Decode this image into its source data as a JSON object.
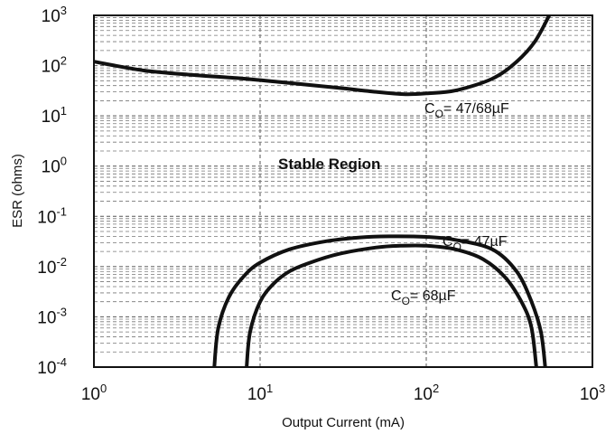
{
  "chart_data": {
    "type": "line",
    "title": "",
    "xlabel": "Output Current (mA)",
    "ylabel": "ESR (ohms)",
    "xscale": "log",
    "yscale": "log",
    "xlim": [
      1,
      1000
    ],
    "ylim": [
      0.0001,
      1000
    ],
    "grid": true,
    "x_ticks": [
      {
        "base": "10",
        "exp": "0",
        "value": 1
      },
      {
        "base": "10",
        "exp": "1",
        "value": 10
      },
      {
        "base": "10",
        "exp": "2",
        "value": 100
      },
      {
        "base": "10",
        "exp": "3",
        "value": 1000
      }
    ],
    "y_ticks": [
      {
        "base": "10",
        "exp": "-4",
        "value": 0.0001
      },
      {
        "base": "10",
        "exp": "-3",
        "value": 0.001
      },
      {
        "base": "10",
        "exp": "-2",
        "value": 0.01
      },
      {
        "base": "10",
        "exp": "-1",
        "value": 0.1
      },
      {
        "base": "10",
        "exp": "0",
        "value": 1
      },
      {
        "base": "10",
        "exp": "1",
        "value": 10
      },
      {
        "base": "10",
        "exp": "2",
        "value": 100
      },
      {
        "base": "10",
        "exp": "3",
        "value": 1000
      }
    ],
    "region_label": "Stable Region",
    "series": [
      {
        "label_main": "C",
        "label_sub": "O",
        "label_rest": "= 47/68µF",
        "x": [
          1,
          2,
          4,
          8,
          15,
          30,
          50,
          75,
          100,
          150,
          250,
          350,
          450,
          550
        ],
        "y": [
          120,
          80,
          65,
          55,
          45,
          36,
          30,
          27,
          28,
          32,
          55,
          120,
          300,
          1000
        ]
      },
      {
        "label_main": "C",
        "label_sub": "O",
        "label_rest": "= 47µF",
        "x": [
          5.3,
          5.6,
          6.5,
          8,
          10,
          15,
          25,
          40,
          60,
          100,
          150,
          250,
          350,
          430,
          490,
          520
        ],
        "y": [
          0.0001,
          0.0006,
          0.0025,
          0.0065,
          0.012,
          0.022,
          0.032,
          0.038,
          0.04,
          0.039,
          0.034,
          0.022,
          0.008,
          0.002,
          0.0005,
          0.0001
        ]
      },
      {
        "label_main": "C",
        "label_sub": "O",
        "label_rest": "= 68µF",
        "x": [
          8.3,
          8.7,
          10,
          12,
          15,
          20,
          30,
          50,
          70,
          100,
          150,
          220,
          300,
          380,
          430,
          460
        ],
        "y": [
          0.0001,
          0.0005,
          0.002,
          0.0045,
          0.008,
          0.012,
          0.018,
          0.024,
          0.026,
          0.026,
          0.022,
          0.014,
          0.006,
          0.0018,
          0.0006,
          0.0001
        ]
      }
    ]
  }
}
